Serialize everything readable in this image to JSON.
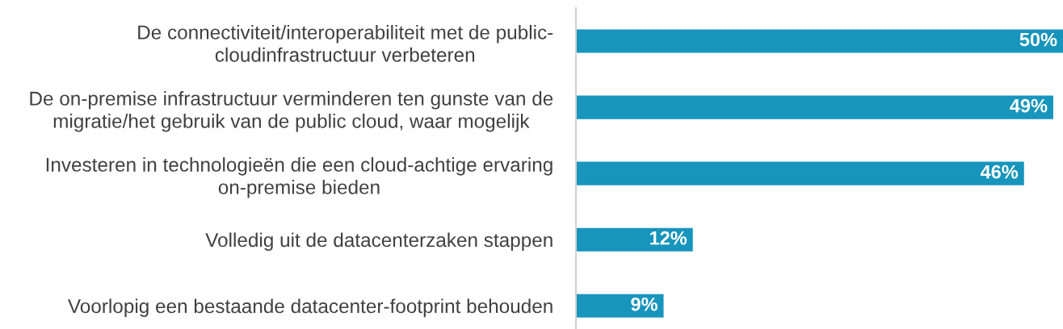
{
  "chart_data": {
    "type": "bar",
    "orientation": "horizontal",
    "categories": [
      "De connectiviteit/interoperabiliteit met de public-\ncloudinfrastructuur verbeteren",
      "De on-premise infrastructuur verminderen ten gunste van de\nmigratie/het gebruik van de public cloud, waar mogelijk",
      "Investeren in technologieën die een cloud-achtige ervaring\non-premise bieden",
      "Volledig uit de datacenterzaken stappen",
      "Voorlopig een bestaande datacenter-footprint behouden"
    ],
    "values": [
      50,
      49,
      46,
      12,
      9
    ],
    "value_labels": [
      "50%",
      "49%",
      "46%",
      "12%",
      "9%"
    ],
    "color": "#1795bd",
    "xlim": [
      0,
      50
    ],
    "tick_labels": "y"
  }
}
